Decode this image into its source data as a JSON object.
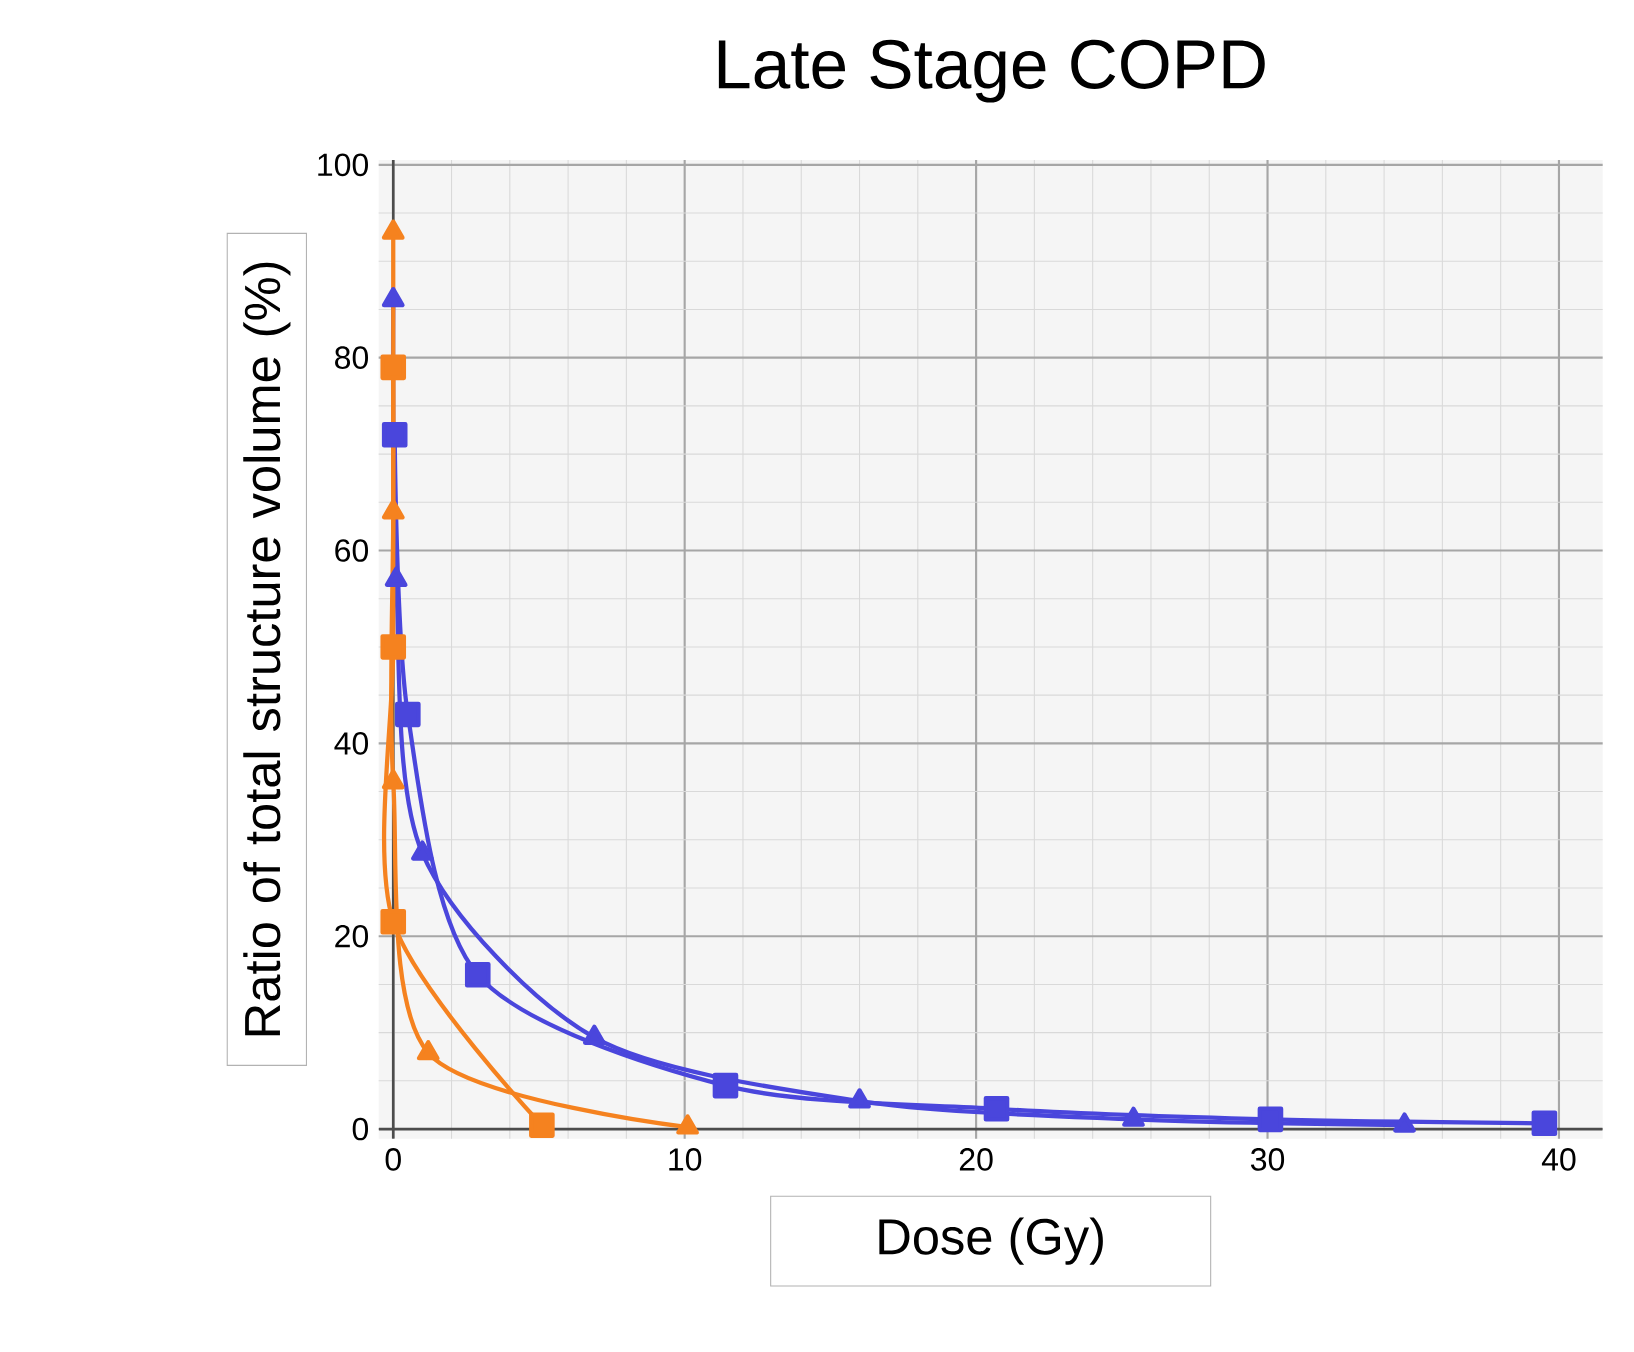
{
  "chart_data": {
    "type": "line",
    "title": "Late Stage COPD",
    "xlabel": "Dose (Gy)",
    "ylabel": "Ratio of total structure volume (%)",
    "xlim": [
      -0.5,
      41.5
    ],
    "ylim": [
      -1,
      100.5
    ],
    "xticks": [
      0,
      10,
      20,
      30,
      40
    ],
    "yticks": [
      0,
      20,
      40,
      60,
      80,
      100
    ],
    "grid": true,
    "series": [
      {
        "color": "#4a46dc",
        "marker": "square",
        "x": [
          0.05,
          0.5,
          2.9,
          11.4,
          20.7,
          30.1,
          39.5
        ],
        "values": [
          72,
          43,
          16,
          4.5,
          2.1,
          1.0,
          0.6
        ]
      },
      {
        "color": "#4a46dc",
        "marker": "triangle",
        "x": [
          0,
          0.1,
          1,
          6.9,
          16,
          25.4,
          34.7
        ],
        "values": [
          86,
          57,
          28.6,
          9.5,
          2.9,
          1.0,
          0.4
        ]
      },
      {
        "color": "#f5821f",
        "marker": "square",
        "x": [
          0,
          0,
          0,
          5.1
        ],
        "values": [
          79,
          50,
          21.5,
          0.4
        ]
      },
      {
        "color": "#f5821f",
        "marker": "triangle",
        "x": [
          0,
          0,
          0,
          1.2,
          10.1
        ],
        "values": [
          93,
          64,
          36,
          7.9,
          0.2
        ]
      }
    ]
  }
}
